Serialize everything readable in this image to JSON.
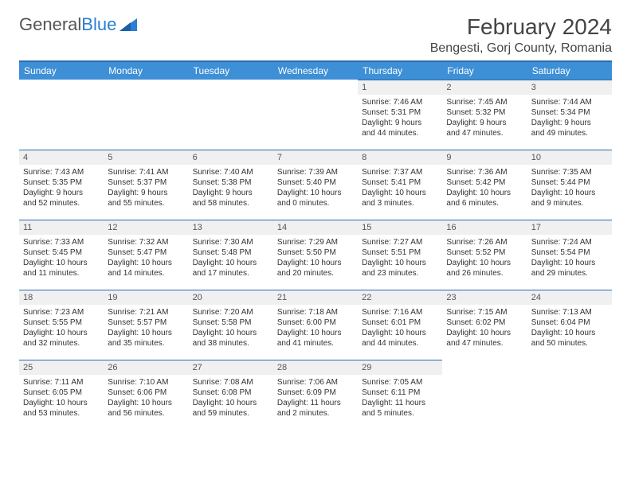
{
  "logo": {
    "text1": "General",
    "text2": "Blue"
  },
  "title": "February 2024",
  "location": "Bengesti, Gorj County, Romania",
  "colors": {
    "header_bg": "#3d8fd6",
    "header_border": "#2a6bb0",
    "daynum_bg": "#f0f0f0",
    "logo_blue": "#2a7fd4"
  },
  "weekdays": [
    "Sunday",
    "Monday",
    "Tuesday",
    "Wednesday",
    "Thursday",
    "Friday",
    "Saturday"
  ],
  "first_weekday_index": 4,
  "days": [
    {
      "n": "1",
      "sunrise": "Sunrise: 7:46 AM",
      "sunset": "Sunset: 5:31 PM",
      "d1": "Daylight: 9 hours",
      "d2": "and 44 minutes."
    },
    {
      "n": "2",
      "sunrise": "Sunrise: 7:45 AM",
      "sunset": "Sunset: 5:32 PM",
      "d1": "Daylight: 9 hours",
      "d2": "and 47 minutes."
    },
    {
      "n": "3",
      "sunrise": "Sunrise: 7:44 AM",
      "sunset": "Sunset: 5:34 PM",
      "d1": "Daylight: 9 hours",
      "d2": "and 49 minutes."
    },
    {
      "n": "4",
      "sunrise": "Sunrise: 7:43 AM",
      "sunset": "Sunset: 5:35 PM",
      "d1": "Daylight: 9 hours",
      "d2": "and 52 minutes."
    },
    {
      "n": "5",
      "sunrise": "Sunrise: 7:41 AM",
      "sunset": "Sunset: 5:37 PM",
      "d1": "Daylight: 9 hours",
      "d2": "and 55 minutes."
    },
    {
      "n": "6",
      "sunrise": "Sunrise: 7:40 AM",
      "sunset": "Sunset: 5:38 PM",
      "d1": "Daylight: 9 hours",
      "d2": "and 58 minutes."
    },
    {
      "n": "7",
      "sunrise": "Sunrise: 7:39 AM",
      "sunset": "Sunset: 5:40 PM",
      "d1": "Daylight: 10 hours",
      "d2": "and 0 minutes."
    },
    {
      "n": "8",
      "sunrise": "Sunrise: 7:37 AM",
      "sunset": "Sunset: 5:41 PM",
      "d1": "Daylight: 10 hours",
      "d2": "and 3 minutes."
    },
    {
      "n": "9",
      "sunrise": "Sunrise: 7:36 AM",
      "sunset": "Sunset: 5:42 PM",
      "d1": "Daylight: 10 hours",
      "d2": "and 6 minutes."
    },
    {
      "n": "10",
      "sunrise": "Sunrise: 7:35 AM",
      "sunset": "Sunset: 5:44 PM",
      "d1": "Daylight: 10 hours",
      "d2": "and 9 minutes."
    },
    {
      "n": "11",
      "sunrise": "Sunrise: 7:33 AM",
      "sunset": "Sunset: 5:45 PM",
      "d1": "Daylight: 10 hours",
      "d2": "and 11 minutes."
    },
    {
      "n": "12",
      "sunrise": "Sunrise: 7:32 AM",
      "sunset": "Sunset: 5:47 PM",
      "d1": "Daylight: 10 hours",
      "d2": "and 14 minutes."
    },
    {
      "n": "13",
      "sunrise": "Sunrise: 7:30 AM",
      "sunset": "Sunset: 5:48 PM",
      "d1": "Daylight: 10 hours",
      "d2": "and 17 minutes."
    },
    {
      "n": "14",
      "sunrise": "Sunrise: 7:29 AM",
      "sunset": "Sunset: 5:50 PM",
      "d1": "Daylight: 10 hours",
      "d2": "and 20 minutes."
    },
    {
      "n": "15",
      "sunrise": "Sunrise: 7:27 AM",
      "sunset": "Sunset: 5:51 PM",
      "d1": "Daylight: 10 hours",
      "d2": "and 23 minutes."
    },
    {
      "n": "16",
      "sunrise": "Sunrise: 7:26 AM",
      "sunset": "Sunset: 5:52 PM",
      "d1": "Daylight: 10 hours",
      "d2": "and 26 minutes."
    },
    {
      "n": "17",
      "sunrise": "Sunrise: 7:24 AM",
      "sunset": "Sunset: 5:54 PM",
      "d1": "Daylight: 10 hours",
      "d2": "and 29 minutes."
    },
    {
      "n": "18",
      "sunrise": "Sunrise: 7:23 AM",
      "sunset": "Sunset: 5:55 PM",
      "d1": "Daylight: 10 hours",
      "d2": "and 32 minutes."
    },
    {
      "n": "19",
      "sunrise": "Sunrise: 7:21 AM",
      "sunset": "Sunset: 5:57 PM",
      "d1": "Daylight: 10 hours",
      "d2": "and 35 minutes."
    },
    {
      "n": "20",
      "sunrise": "Sunrise: 7:20 AM",
      "sunset": "Sunset: 5:58 PM",
      "d1": "Daylight: 10 hours",
      "d2": "and 38 minutes."
    },
    {
      "n": "21",
      "sunrise": "Sunrise: 7:18 AM",
      "sunset": "Sunset: 6:00 PM",
      "d1": "Daylight: 10 hours",
      "d2": "and 41 minutes."
    },
    {
      "n": "22",
      "sunrise": "Sunrise: 7:16 AM",
      "sunset": "Sunset: 6:01 PM",
      "d1": "Daylight: 10 hours",
      "d2": "and 44 minutes."
    },
    {
      "n": "23",
      "sunrise": "Sunrise: 7:15 AM",
      "sunset": "Sunset: 6:02 PM",
      "d1": "Daylight: 10 hours",
      "d2": "and 47 minutes."
    },
    {
      "n": "24",
      "sunrise": "Sunrise: 7:13 AM",
      "sunset": "Sunset: 6:04 PM",
      "d1": "Daylight: 10 hours",
      "d2": "and 50 minutes."
    },
    {
      "n": "25",
      "sunrise": "Sunrise: 7:11 AM",
      "sunset": "Sunset: 6:05 PM",
      "d1": "Daylight: 10 hours",
      "d2": "and 53 minutes."
    },
    {
      "n": "26",
      "sunrise": "Sunrise: 7:10 AM",
      "sunset": "Sunset: 6:06 PM",
      "d1": "Daylight: 10 hours",
      "d2": "and 56 minutes."
    },
    {
      "n": "27",
      "sunrise": "Sunrise: 7:08 AM",
      "sunset": "Sunset: 6:08 PM",
      "d1": "Daylight: 10 hours",
      "d2": "and 59 minutes."
    },
    {
      "n": "28",
      "sunrise": "Sunrise: 7:06 AM",
      "sunset": "Sunset: 6:09 PM",
      "d1": "Daylight: 11 hours",
      "d2": "and 2 minutes."
    },
    {
      "n": "29",
      "sunrise": "Sunrise: 7:05 AM",
      "sunset": "Sunset: 6:11 PM",
      "d1": "Daylight: 11 hours",
      "d2": "and 5 minutes."
    }
  ]
}
